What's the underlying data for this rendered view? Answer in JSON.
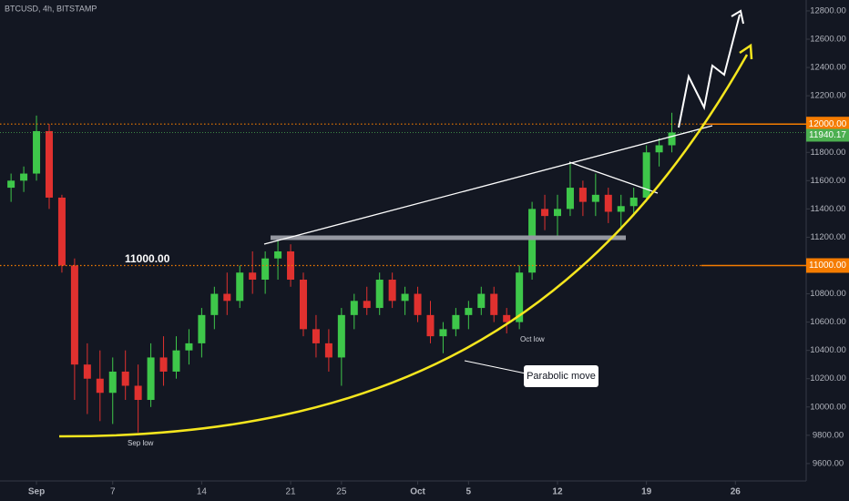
{
  "chart_data": {
    "type": "candlestick",
    "title": "BTCUSD, 4h, BITSTAMP",
    "x": [
      -1,
      0,
      1,
      2,
      3,
      4,
      5,
      6,
      7,
      8,
      9,
      10,
      11,
      12,
      13,
      14,
      15,
      16,
      17,
      18,
      19,
      20,
      21,
      22,
      23,
      24,
      25,
      26,
      27,
      28,
      29,
      30,
      31,
      32,
      33,
      34,
      35,
      36,
      37,
      38,
      39,
      40,
      41,
      42,
      43,
      44,
      45,
      46,
      47,
      48,
      49,
      50,
      51
    ],
    "open": [
      11550,
      11600,
      11650,
      11950,
      11480,
      11000,
      10300,
      10200,
      10100,
      10250,
      10150,
      10050,
      10350,
      10250,
      10400,
      10450,
      10650,
      10800,
      10750,
      10950,
      10900,
      11050,
      11100,
      10900,
      10550,
      10450,
      10350,
      10650,
      10750,
      10700,
      10900,
      10750,
      10800,
      10650,
      10500,
      10550,
      10650,
      10700,
      10800,
      10650,
      10600,
      10950,
      11400,
      11350,
      11400,
      11550,
      11450,
      11500,
      11380,
      11420,
      11480,
      11800,
      11850
    ],
    "high": [
      11650,
      11700,
      12060,
      12000,
      11500,
      11050,
      10450,
      10400,
      10350,
      10400,
      10300,
      10450,
      10500,
      10500,
      10550,
      10700,
      10850,
      10950,
      11000,
      11100,
      11100,
      11180,
      11150,
      10950,
      10650,
      10550,
      10700,
      10800,
      10850,
      10950,
      10950,
      10850,
      10850,
      10750,
      10600,
      10700,
      10750,
      10850,
      10850,
      10700,
      11000,
      11450,
      11500,
      11500,
      11720,
      11600,
      11650,
      11550,
      11500,
      11550,
      11850,
      11900,
      12080
    ],
    "low": [
      11450,
      11520,
      11600,
      11400,
      10950,
      10050,
      9950,
      9900,
      9880,
      10050,
      9820,
      10000,
      10150,
      10200,
      10300,
      10350,
      10550,
      10650,
      10700,
      10800,
      10800,
      10900,
      10850,
      10500,
      10350,
      10250,
      10150,
      10550,
      10650,
      10650,
      10700,
      10650,
      10600,
      10450,
      10380,
      10500,
      10550,
      10650,
      10600,
      10520,
      10550,
      10900,
      11250,
      11200,
      11350,
      11350,
      11350,
      11300,
      11250,
      11350,
      11450,
      11700,
      11800
    ],
    "close": [
      11600,
      11650,
      11950,
      11480,
      11000,
      10300,
      10200,
      10100,
      10250,
      10150,
      10050,
      10350,
      10250,
      10400,
      10450,
      10650,
      10800,
      10750,
      10950,
      10900,
      11050,
      11100,
      10900,
      10550,
      10450,
      10350,
      10650,
      10750,
      10700,
      10900,
      10750,
      10800,
      10650,
      10500,
      10550,
      10650,
      10700,
      10800,
      10650,
      10600,
      10950,
      11400,
      11350,
      11400,
      11550,
      11450,
      11500,
      11380,
      11420,
      11480,
      11800,
      11850,
      11940.17
    ],
    "up_color": "#3ec74a",
    "down_color": "#e0312f",
    "xlim": [
      -1.87,
      61.57
    ],
    "xticks": [
      {
        "value": 1,
        "label": "Sep"
      },
      7,
      14,
      21,
      25,
      {
        "value": 31,
        "label": "Oct"
      },
      {
        "value": 35,
        "label": "5"
      },
      {
        "value": 42,
        "label": "12"
      },
      {
        "value": 49,
        "label": "19"
      },
      {
        "value": 56,
        "label": "26"
      }
    ],
    "ylim": [
      9477,
      12877
    ],
    "yticks": [
      {
        "value": 9600,
        "label": "9600.00"
      },
      {
        "value": 9800,
        "label": "9800.00"
      },
      {
        "value": 10000,
        "label": "10000.00"
      },
      {
        "value": 10200,
        "label": "10200.00"
      },
      {
        "value": 10400,
        "label": "10400.00"
      },
      {
        "value": 10600,
        "label": "10600.00"
      },
      {
        "value": 10800,
        "label": "10800.00"
      },
      {
        "value": 11200,
        "label": "11200.00"
      },
      {
        "value": 11400,
        "label": "11400.00"
      },
      {
        "value": 11600,
        "label": "11600.00"
      },
      {
        "value": 11800,
        "label": "11800.00"
      },
      {
        "value": 12200,
        "label": "12200.00"
      },
      {
        "value": 12400,
        "label": "12400.00"
      },
      {
        "value": 12600,
        "label": "12600.00"
      },
      {
        "value": 12800,
        "label": "12800.00"
      }
    ],
    "levels": [
      {
        "value": 12000,
        "label": "12000.00"
      },
      {
        "value": 11000,
        "label": "11000.00"
      }
    ],
    "level_color": "#f57c00",
    "last_price": {
      "value": 11940.17,
      "label": "11940.17"
    },
    "last_color": "#4caf50",
    "annotations": [
      "Sep low",
      "Oct low",
      "Parabolic move"
    ]
  }
}
